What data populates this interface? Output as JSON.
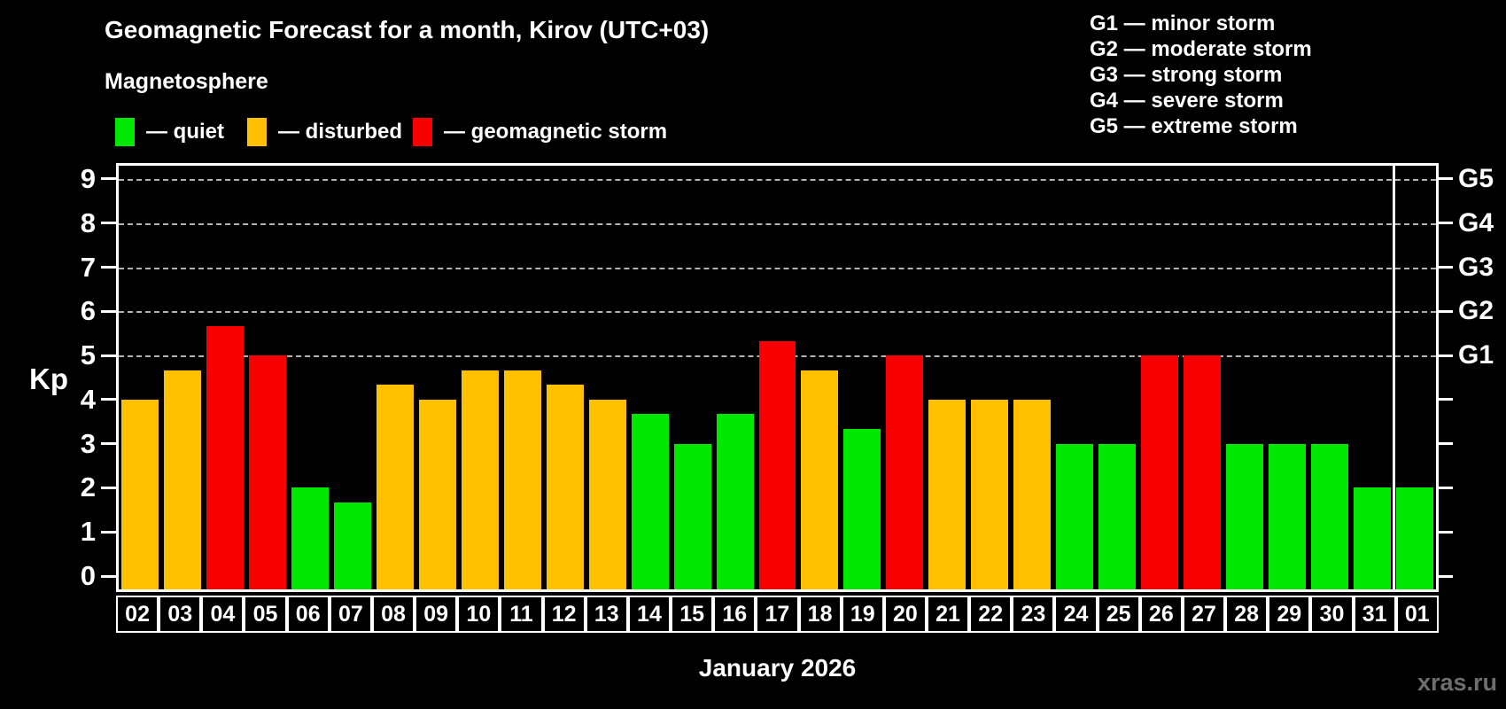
{
  "title": "Geomagnetic Forecast for a month, Kirov (UTC+03)",
  "subtitle": "Magnetosphere",
  "legend": {
    "items": [
      {
        "name": "quiet",
        "label": "— quiet",
        "color": "#00e800"
      },
      {
        "name": "disturbed",
        "label": "— disturbed",
        "color": "#ffc000"
      },
      {
        "name": "storm",
        "label": "— geomagnetic storm",
        "color": "#f80000"
      }
    ]
  },
  "g_scale_legend": {
    "items": [
      {
        "code": "G1",
        "label": "G1 — minor storm"
      },
      {
        "code": "G2",
        "label": "G2 — moderate storm"
      },
      {
        "code": "G3",
        "label": "G3 — strong storm"
      },
      {
        "code": "G4",
        "label": "G4 — severe storm"
      },
      {
        "code": "G5",
        "label": "G5 — extreme storm"
      }
    ]
  },
  "axes": {
    "y_label": "Kp",
    "y_ticks": [
      0,
      1,
      2,
      3,
      4,
      5,
      6,
      7,
      8,
      9
    ],
    "right_labels": [
      {
        "code": "G1",
        "kp": 5
      },
      {
        "code": "G2",
        "kp": 6
      },
      {
        "code": "G3",
        "kp": 7
      },
      {
        "code": "G4",
        "kp": 8
      },
      {
        "code": "G5",
        "kp": 9
      }
    ]
  },
  "x_title": "January 2026",
  "watermark": "xras.ru",
  "colors": {
    "quiet": "#00e800",
    "disturbed": "#ffc000",
    "storm": "#f80000",
    "grid": "#b3b3b3",
    "axis": "#ffffff",
    "text": "#ffffff",
    "watermark": "#6e6e6e",
    "background": "#000000"
  },
  "chart_data": {
    "type": "bar",
    "title": "Geomagnetic Forecast for a month, Kirov (UTC+03)",
    "xlabel": "January 2026",
    "ylabel": "Kp",
    "ylim": [
      0,
      9
    ],
    "grid_levels": [
      5,
      6,
      7,
      8,
      9
    ],
    "legend_position": "top-left",
    "categories": [
      "02",
      "03",
      "04",
      "05",
      "06",
      "07",
      "08",
      "09",
      "10",
      "11",
      "12",
      "13",
      "14",
      "15",
      "16",
      "17",
      "18",
      "19",
      "20",
      "21",
      "22",
      "23",
      "24",
      "25",
      "26",
      "27",
      "28",
      "29",
      "30",
      "31",
      "01"
    ],
    "values": [
      4,
      4.67,
      5.67,
      5,
      2,
      1.67,
      4.33,
      4,
      4.67,
      4.67,
      4.33,
      4,
      3.67,
      3,
      3.67,
      5.33,
      4.67,
      3.33,
      5,
      4,
      4,
      4,
      3,
      3,
      5,
      5,
      3,
      3,
      3,
      2,
      2
    ],
    "states": [
      "disturbed",
      "disturbed",
      "storm",
      "storm",
      "quiet",
      "quiet",
      "disturbed",
      "disturbed",
      "disturbed",
      "disturbed",
      "disturbed",
      "disturbed",
      "quiet",
      "quiet",
      "quiet",
      "storm",
      "disturbed",
      "quiet",
      "storm",
      "disturbed",
      "disturbed",
      "disturbed",
      "quiet",
      "quiet",
      "storm",
      "storm",
      "quiet",
      "quiet",
      "quiet",
      "quiet",
      "quiet"
    ],
    "month_separator_after_index": 29
  }
}
